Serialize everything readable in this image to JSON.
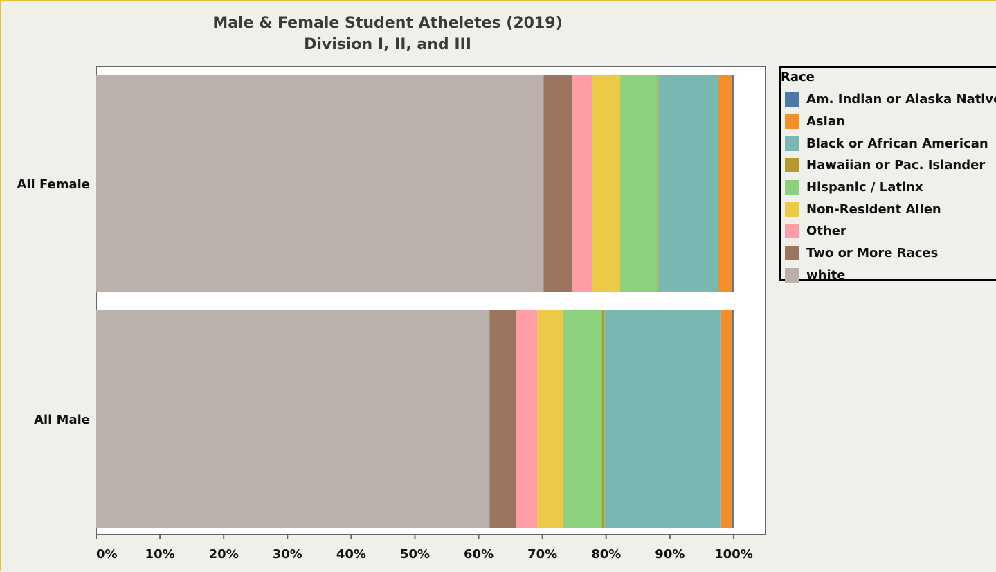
{
  "chart_data": {
    "type": "bar",
    "orientation": "horizontal",
    "stacked": true,
    "normalized": true,
    "title": "Male & Female Student Atheletes (2019)",
    "subtitle": "Division I, II, and III",
    "xlabel": "",
    "ylabel": "",
    "xlim": [
      0,
      1.05
    ],
    "x_ticks": [
      "0%",
      "10%",
      "20%",
      "30%",
      "40%",
      "50%",
      "60%",
      "70%",
      "80%",
      "90%",
      "100%"
    ],
    "categories": [
      "All Female",
      "All Male"
    ],
    "legend_title": "Race",
    "legend_position": "right",
    "series": [
      {
        "name": "white",
        "color": "#bab0ac",
        "values": [
          70.2,
          62.1
        ]
      },
      {
        "name": "Two or More Races",
        "color": "#9c755f",
        "values": [
          4.5,
          4.1
        ]
      },
      {
        "name": "Other",
        "color": "#ff9da7",
        "values": [
          3.1,
          3.4
        ]
      },
      {
        "name": "Non-Resident Alien",
        "color": "#edc948",
        "values": [
          4.4,
          4.1
        ]
      },
      {
        "name": "Hispanic / Latinx",
        "color": "#8cd17d",
        "values": [
          5.8,
          6.1
        ]
      },
      {
        "name": "Hawaiian or Pac. Islander",
        "color": "#b6992d",
        "values": [
          0.2,
          0.4
        ]
      },
      {
        "name": "Black or African American",
        "color": "#79b7b2",
        "values": [
          9.4,
          18.3
        ]
      },
      {
        "name": "Asian",
        "color": "#f28e2b",
        "values": [
          2.1,
          1.8
        ]
      },
      {
        "name": "Am. Indian or Alaska Native",
        "color": "#4e79a7",
        "values": [
          0.3,
          0.3
        ]
      }
    ],
    "legend_order": [
      "Am. Indian or Alaska Native",
      "Asian",
      "Black or African American",
      "Hawaiian or Pac. Islander",
      "Hispanic / Latinx",
      "Non-Resident Alien",
      "Other",
      "Two or More Races",
      "white"
    ]
  }
}
